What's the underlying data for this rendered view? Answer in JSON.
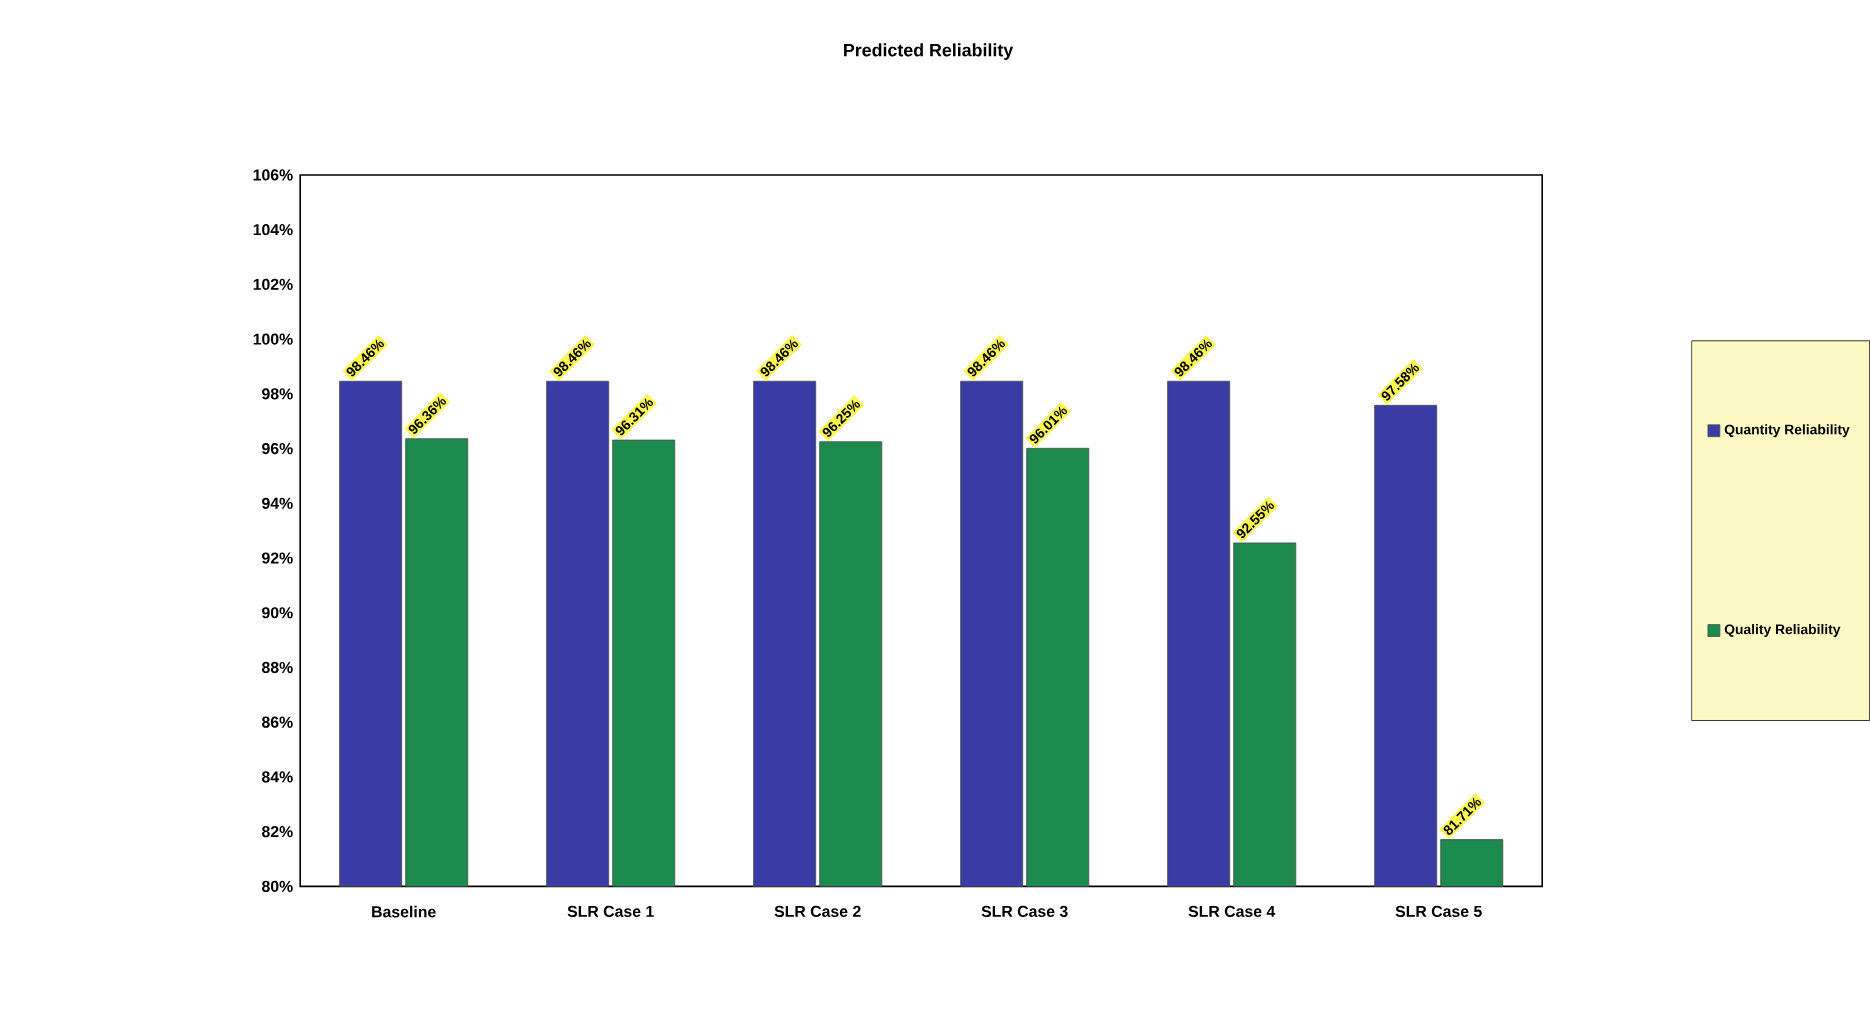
{
  "chart_data": {
    "type": "bar",
    "title": "Predicted Reliability",
    "categories": [
      "Baseline",
      "SLR Case 1",
      "SLR Case 2",
      "SLR Case 3",
      "SLR Case 4",
      "SLR Case 5"
    ],
    "series": [
      {
        "name": "Quantity Reliability",
        "color": "#3b3ba6",
        "values": [
          98.46,
          98.46,
          98.46,
          98.46,
          98.46,
          97.58
        ],
        "value_labels": [
          "98.46%",
          "98.46%",
          "98.46%",
          "98.46%",
          "98.46%",
          "97.58%"
        ]
      },
      {
        "name": "Quality Reliability",
        "color": "#1b8a4c",
        "values": [
          96.36,
          96.31,
          96.25,
          96.01,
          92.55,
          81.71
        ],
        "value_labels": [
          "96.36%",
          "96.31%",
          "96.25%",
          "96.01%",
          "92.55%",
          "81.71%"
        ]
      }
    ],
    "ylim": [
      80,
      106
    ],
    "yticks": [
      {
        "value": 80,
        "label": "80%"
      },
      {
        "value": 82,
        "label": "82%"
      },
      {
        "value": 84,
        "label": "84%"
      },
      {
        "value": 86,
        "label": "86%"
      },
      {
        "value": 88,
        "label": "88%"
      },
      {
        "value": 90,
        "label": "90%"
      },
      {
        "value": 92,
        "label": "92%"
      },
      {
        "value": 94,
        "label": "94%"
      },
      {
        "value": 96,
        "label": "96%"
      },
      {
        "value": 98,
        "label": "98%"
      },
      {
        "value": 100,
        "label": "100%"
      },
      {
        "value": 102,
        "label": "102%"
      },
      {
        "value": 104,
        "label": "104%"
      },
      {
        "value": 106,
        "label": "106%"
      }
    ],
    "legend": "right",
    "grid": false
  }
}
